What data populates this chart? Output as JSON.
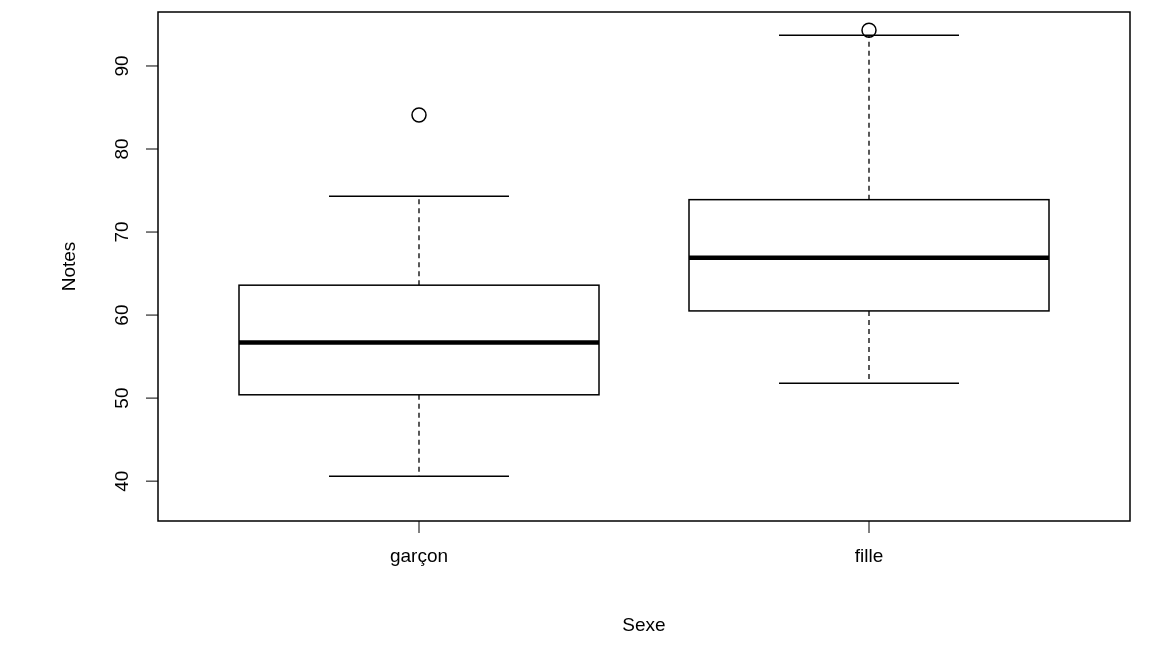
{
  "chart_data": {
    "type": "box",
    "xlabel": "Sexe",
    "ylabel": "Notes",
    "categories": [
      "garçon",
      "fille"
    ],
    "boxes": [
      {
        "low": 40.6,
        "q1": 50.4,
        "median": 56.7,
        "q3": 63.6,
        "high": 74.3,
        "outliers": [
          84.1
        ]
      },
      {
        "low": 51.8,
        "q1": 60.5,
        "median": 66.9,
        "q3": 73.9,
        "high": 93.7,
        "outliers": [
          94.3
        ]
      }
    ],
    "ylim": [
      35.2,
      96.5
    ],
    "yticks": [
      40,
      50,
      60,
      70,
      80,
      90
    ]
  }
}
